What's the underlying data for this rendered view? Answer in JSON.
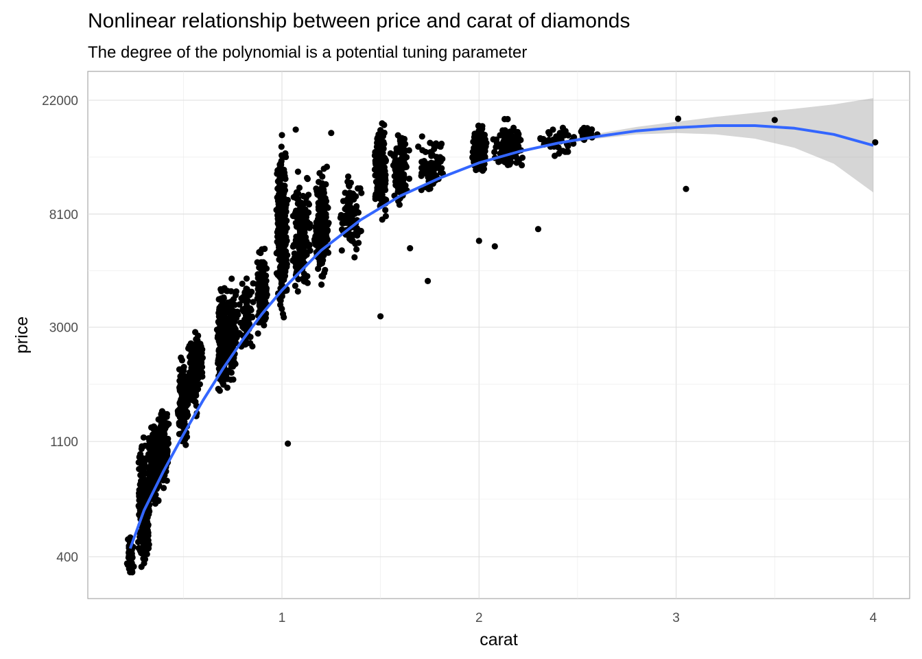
{
  "chart_data": {
    "type": "scatter",
    "title": "Nonlinear relationship between price and carat of diamonds",
    "subtitle": "The degree of the polynomial is a potential tuning parameter",
    "xlabel": "carat",
    "ylabel": "price",
    "x_scale": "linear",
    "y_scale": "log",
    "xlim": [
      0.1,
      4.15
    ],
    "ylim": [
      300,
      32000
    ],
    "x_ticks": [
      1,
      2,
      3,
      4
    ],
    "x_tick_labels": [
      "1",
      "2",
      "3",
      "4"
    ],
    "y_ticks": [
      400,
      1100,
      3000,
      8100,
      22000
    ],
    "y_tick_labels": [
      "400",
      "1100",
      "3000",
      "8100",
      "22000"
    ],
    "grid": true,
    "legend": "none",
    "colors": {
      "points": "#000000",
      "fit_line": "#3366ff",
      "ribbon": "#999999",
      "grid": "#dedede"
    },
    "clusters": [
      {
        "carat": 0.23,
        "carat_spread": 0.02,
        "price_min": 326,
        "price_max": 500,
        "count": 60
      },
      {
        "carat": 0.3,
        "carat_spread": 0.03,
        "price_min": 330,
        "price_max": 1200,
        "count": 300
      },
      {
        "carat": 0.35,
        "carat_spread": 0.03,
        "price_min": 550,
        "price_max": 1400,
        "count": 200
      },
      {
        "carat": 0.4,
        "carat_spread": 0.03,
        "price_min": 700,
        "price_max": 1600,
        "count": 150
      },
      {
        "carat": 0.5,
        "carat_spread": 0.03,
        "price_min": 1000,
        "price_max": 2400,
        "count": 160
      },
      {
        "carat": 0.55,
        "carat_spread": 0.03,
        "price_min": 1200,
        "price_max": 3700,
        "count": 90
      },
      {
        "carat": 0.58,
        "carat_spread": 0.02,
        "price_min": 1700,
        "price_max": 3000,
        "count": 80
      },
      {
        "carat": 0.7,
        "carat_spread": 0.03,
        "price_min": 1500,
        "price_max": 4700,
        "count": 260
      },
      {
        "carat": 0.75,
        "carat_spread": 0.03,
        "price_min": 1700,
        "price_max": 5000,
        "count": 120
      },
      {
        "carat": 0.82,
        "carat_spread": 0.04,
        "price_min": 2000,
        "price_max": 5300,
        "count": 80
      },
      {
        "carat": 0.9,
        "carat_spread": 0.03,
        "price_min": 2500,
        "price_max": 6500,
        "count": 140
      },
      {
        "carat": 1.0,
        "carat_spread": 0.03,
        "price_min": 3000,
        "price_max": 16000,
        "count": 320
      },
      {
        "carat": 1.1,
        "carat_spread": 0.05,
        "price_min": 3500,
        "price_max": 13000,
        "count": 160
      },
      {
        "carat": 1.2,
        "carat_spread": 0.04,
        "price_min": 4000,
        "price_max": 14000,
        "count": 180
      },
      {
        "carat": 1.35,
        "carat_spread": 0.06,
        "price_min": 5000,
        "price_max": 12500,
        "count": 100
      },
      {
        "carat": 1.5,
        "carat_spread": 0.03,
        "price_min": 7500,
        "price_max": 19000,
        "count": 220
      },
      {
        "carat": 1.6,
        "carat_spread": 0.05,
        "price_min": 8000,
        "price_max": 18500,
        "count": 110
      },
      {
        "carat": 1.75,
        "carat_spread": 0.07,
        "price_min": 9000,
        "price_max": 18000,
        "count": 70
      },
      {
        "carat": 2.0,
        "carat_spread": 0.04,
        "price_min": 11000,
        "price_max": 19000,
        "count": 200
      },
      {
        "carat": 2.15,
        "carat_spread": 0.08,
        "price_min": 11500,
        "price_max": 18800,
        "count": 120
      },
      {
        "carat": 2.4,
        "carat_spread": 0.1,
        "price_min": 13000,
        "price_max": 18500,
        "count": 50
      },
      {
        "carat": 2.55,
        "carat_spread": 0.05,
        "price_min": 15000,
        "price_max": 18000,
        "count": 15
      }
    ],
    "outliers": [
      {
        "carat": 1.03,
        "price": 1080
      },
      {
        "carat": 1.0,
        "price": 16200
      },
      {
        "carat": 1.07,
        "price": 17000
      },
      {
        "carat": 1.25,
        "price": 16500
      },
      {
        "carat": 1.5,
        "price": 3300
      },
      {
        "carat": 1.74,
        "price": 4500
      },
      {
        "carat": 1.65,
        "price": 6000
      },
      {
        "carat": 2.0,
        "price": 6400
      },
      {
        "carat": 2.08,
        "price": 6100
      },
      {
        "carat": 2.3,
        "price": 7100
      },
      {
        "carat": 2.55,
        "price": 16000
      },
      {
        "carat": 2.6,
        "price": 16300
      },
      {
        "carat": 3.01,
        "price": 18700
      },
      {
        "carat": 3.05,
        "price": 10100
      },
      {
        "carat": 3.5,
        "price": 18500
      },
      {
        "carat": 4.01,
        "price": 15200
      }
    ],
    "fit_line": {
      "name": "",
      "x": [
        0.23,
        0.3,
        0.4,
        0.5,
        0.6,
        0.7,
        0.8,
        0.9,
        1.0,
        1.2,
        1.4,
        1.6,
        1.8,
        2.0,
        2.2,
        2.4,
        2.6,
        2.8,
        3.0,
        3.2,
        3.4,
        3.6,
        3.8,
        4.0
      ],
      "y": [
        430,
        600,
        850,
        1170,
        1580,
        2080,
        2680,
        3380,
        4150,
        5900,
        7700,
        9500,
        11100,
        12700,
        14000,
        15100,
        16000,
        16800,
        17300,
        17600,
        17600,
        17200,
        16300,
        14800
      ]
    },
    "confidence_band": {
      "x": [
        2.2,
        2.4,
        2.6,
        2.8,
        3.0,
        3.2,
        3.4,
        3.6,
        3.8,
        4.0
      ],
      "lower": [
        13900,
        14900,
        15700,
        16300,
        16500,
        16300,
        15700,
        14500,
        12600,
        9800
      ],
      "upper": [
        14100,
        15300,
        16400,
        17400,
        18200,
        19000,
        19700,
        20400,
        21200,
        22400
      ]
    }
  }
}
